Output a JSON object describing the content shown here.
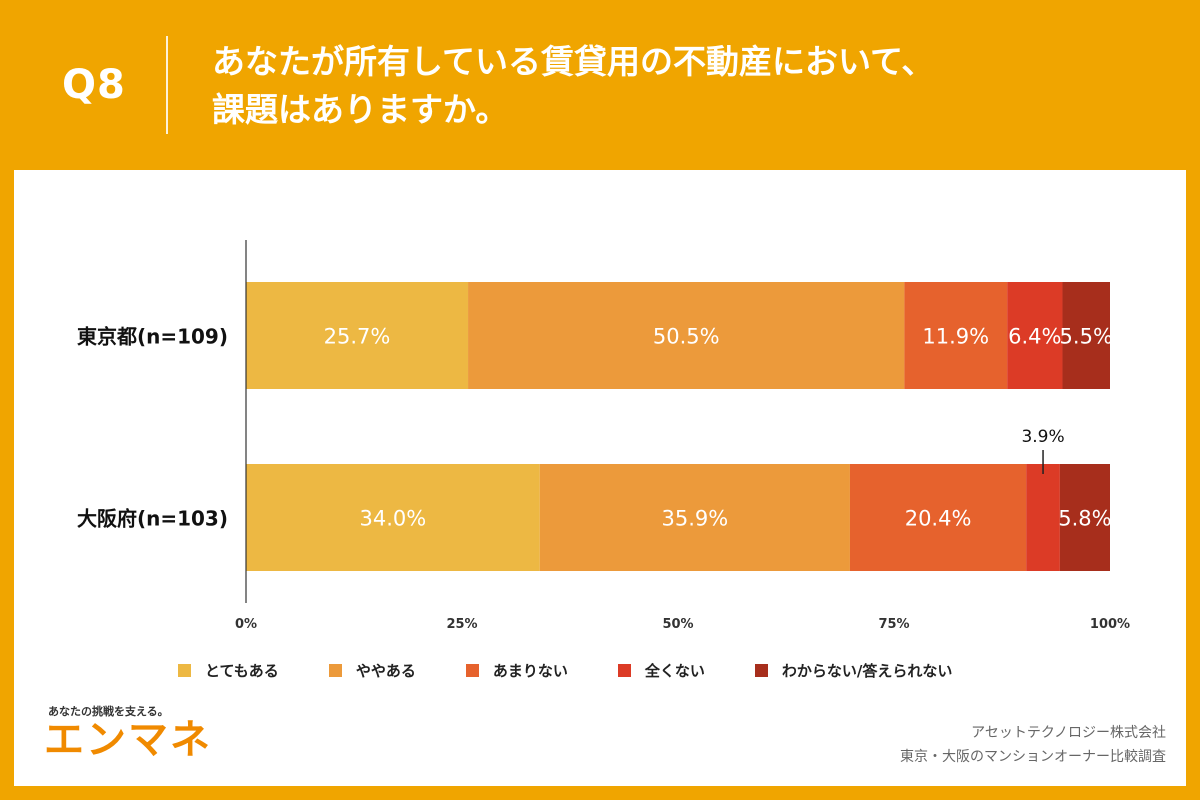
{
  "header": {
    "q_number": "Q8",
    "title_line1": "あなたが所有している賃貸用の不動産において、",
    "title_line2": "課題はありますか。"
  },
  "chart_data": {
    "type": "bar",
    "orientation": "horizontal",
    "stacked": true,
    "categories": [
      "東京都(n=109)",
      "大阪府(n=103)"
    ],
    "series": [
      {
        "name": "とてもある",
        "color": "#EDB843",
        "values": [
          25.7,
          34.0
        ]
      },
      {
        "name": "ややある",
        "color": "#EC9A3B",
        "values": [
          50.5,
          35.9
        ]
      },
      {
        "name": "あまりない",
        "color": "#E6622D",
        "values": [
          11.9,
          20.4
        ]
      },
      {
        "name": "全くない",
        "color": "#DC3B26",
        "values": [
          6.4,
          3.9
        ]
      },
      {
        "name": "わからない/答えられない",
        "color": "#A72E1C",
        "values": [
          5.5,
          5.8
        ]
      }
    ],
    "data_labels": [
      [
        "25.7%",
        "50.5%",
        "11.9%",
        "6.4%",
        "5.5%"
      ],
      [
        "34.0%",
        "35.9%",
        "20.4%",
        "3.9%",
        "5.8%"
      ]
    ],
    "x_ticks": [
      "0%",
      "25%",
      "50%",
      "75%",
      "100%"
    ],
    "xlim": [
      0,
      100
    ],
    "legend_position": "bottom",
    "grid": false
  },
  "footer": {
    "brand_tagline": "あなたの挑戦を支える。",
    "brand_name": "エンマネ",
    "company": "アセットテクノロジー株式会社",
    "survey": "東京・大阪のマンションオーナー比較調査"
  }
}
